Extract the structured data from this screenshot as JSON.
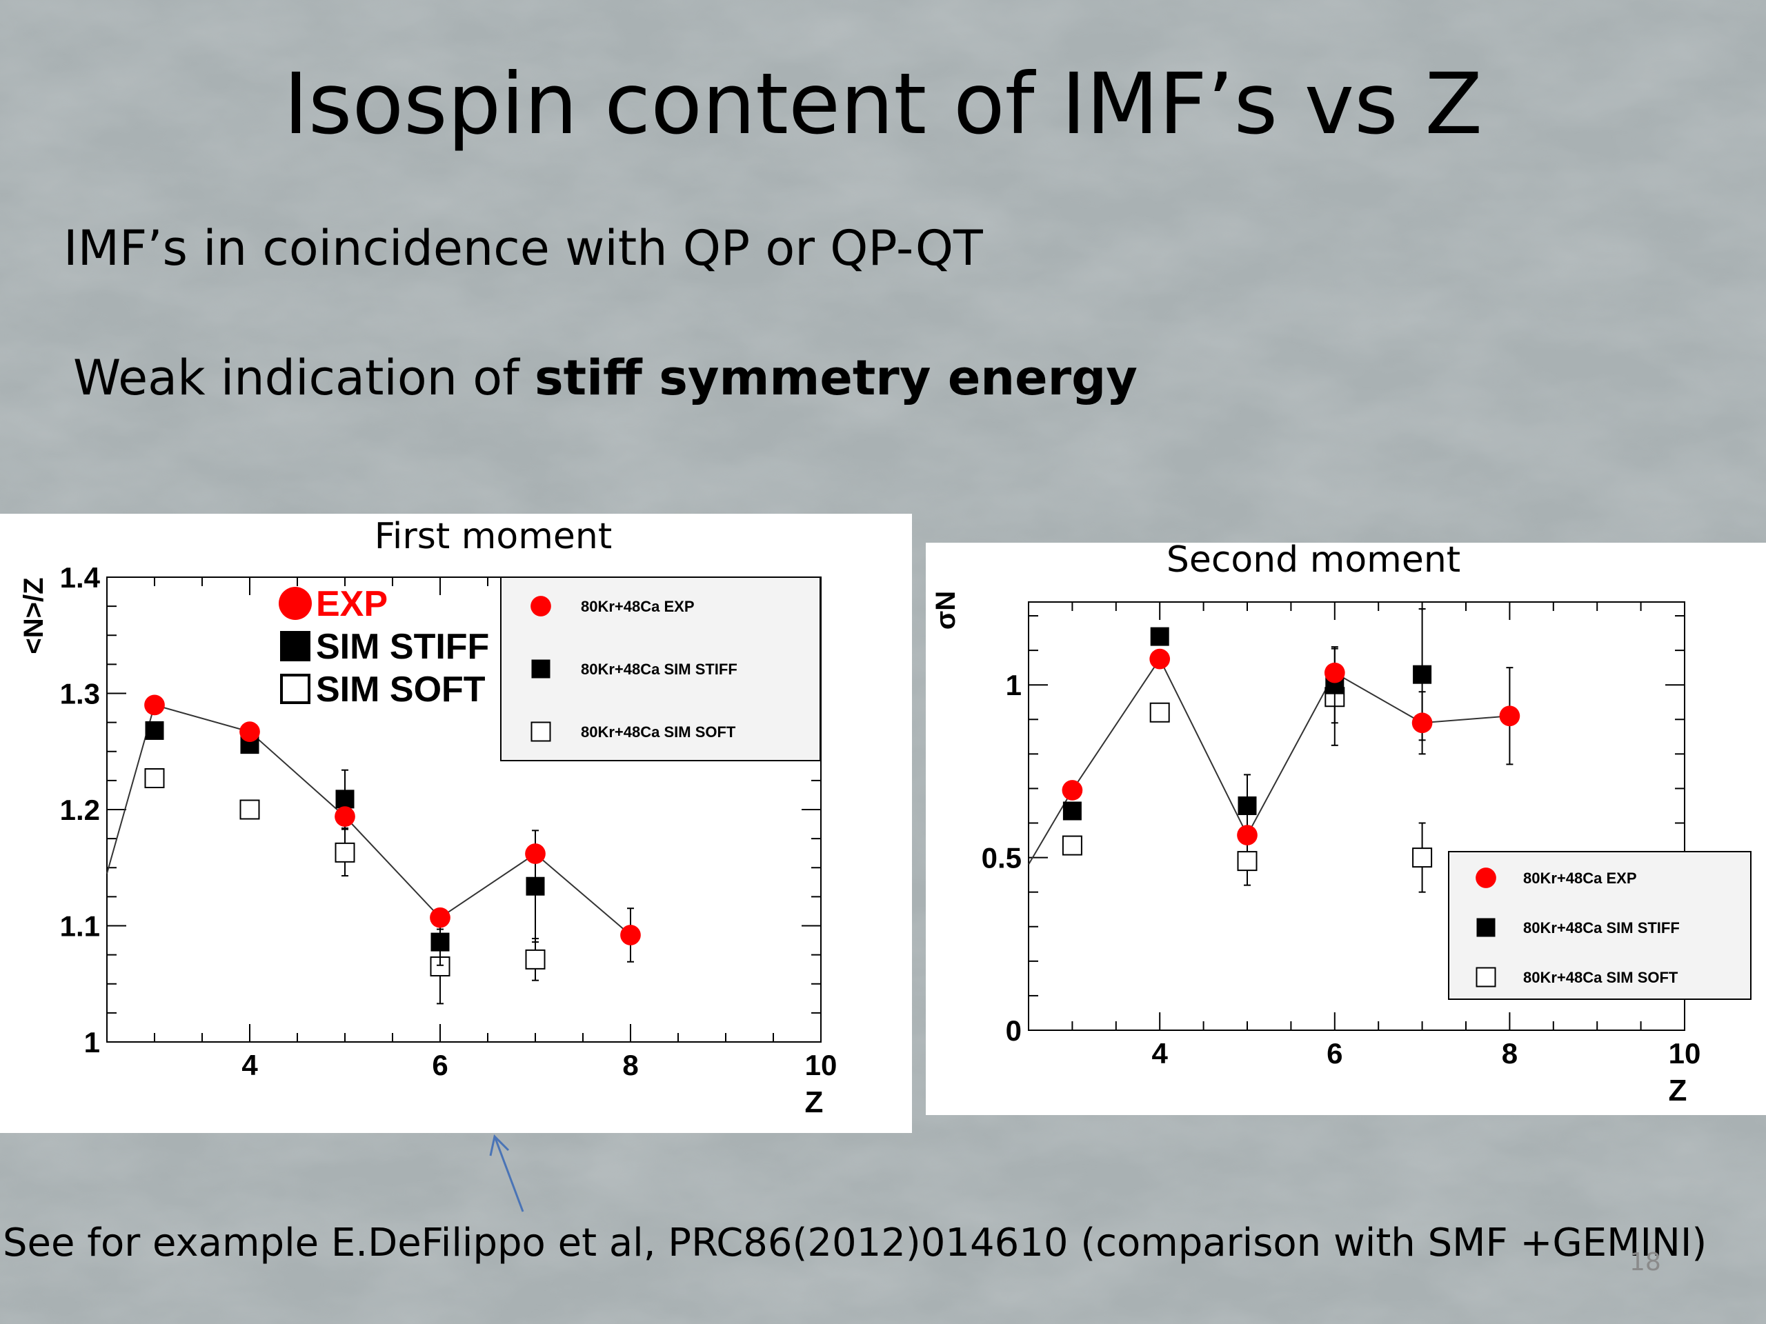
{
  "slide": {
    "title": "Isospin content of IMF’s vs Z",
    "bullet1": "IMF’s in coincidence with QP or QP-QT",
    "bullet2_plain": "Weak indication of ",
    "bullet2_bold": "stiff symmetry energy",
    "footnote": "See for example  E.DeFilippo et al, PRC86(2012)014610 (comparison with SMF +GEMINI)",
    "page_number": "18"
  },
  "colors": {
    "exp": "#ff0000",
    "stiff": "#000000",
    "soft": "#ffffff",
    "background": "#a9b1b3"
  },
  "chart_data": [
    {
      "type": "scatter",
      "title": "First moment",
      "ylabel": "<N>/Z",
      "xlabel": "Z",
      "xlim": [
        2.5,
        10
      ],
      "ylim": [
        1,
        1.4
      ],
      "xticks": [
        4,
        6,
        8,
        10
      ],
      "yticks": [
        1,
        1.1,
        1.2,
        1.3,
        1.4
      ],
      "legend_position": "top-right",
      "inline_legend": [
        "EXP",
        "SIM STIFF",
        "SIM SOFT"
      ],
      "series": [
        {
          "name": "80Kr+48Ca EXP",
          "marker": "circle",
          "color": "#ff0000",
          "line": true,
          "line_start": [
            2.5,
            1.145
          ],
          "points": [
            {
              "x": 3,
              "y": 1.29
            },
            {
              "x": 4,
              "y": 1.267
            },
            {
              "x": 5,
              "y": 1.194
            },
            {
              "x": 6,
              "y": 1.107
            },
            {
              "x": 7,
              "y": 1.162
            },
            {
              "x": 8,
              "y": 1.092,
              "err": 0.023
            }
          ]
        },
        {
          "name": "80Kr+48Ca SIM STIFF",
          "marker": "square",
          "color": "#000000",
          "points": [
            {
              "x": 3,
              "y": 1.268
            },
            {
              "x": 4,
              "y": 1.256
            },
            {
              "x": 5,
              "y": 1.209,
              "err": 0.025
            },
            {
              "x": 6,
              "y": 1.086,
              "err": 0.02
            },
            {
              "x": 7,
              "y": 1.134,
              "err": 0.048
            }
          ]
        },
        {
          "name": "80Kr+48Ca SIM SOFT",
          "marker": "open-square",
          "color": "#ffffff",
          "points": [
            {
              "x": 3,
              "y": 1.227
            },
            {
              "x": 4,
              "y": 1.2
            },
            {
              "x": 5,
              "y": 1.163,
              "err": 0.02
            },
            {
              "x": 6,
              "y": 1.065,
              "err": 0.032
            },
            {
              "x": 7,
              "y": 1.071,
              "err": 0.018
            }
          ]
        }
      ]
    },
    {
      "type": "scatter",
      "title": "Second moment",
      "ylabel": "σN",
      "xlabel": "Z",
      "xlim": [
        2.5,
        10
      ],
      "ylim": [
        0,
        1.24
      ],
      "xticks": [
        4,
        6,
        8,
        10
      ],
      "yticks": [
        0,
        0.5,
        1
      ],
      "ytick_labels": [
        "0",
        "0.5",
        "1"
      ],
      "legend_position": "bottom-right",
      "series": [
        {
          "name": "80Kr+48Ca EXP",
          "marker": "circle",
          "color": "#ff0000",
          "line": true,
          "line_start": [
            2.5,
            0.48
          ],
          "points": [
            {
              "x": 3,
              "y": 0.695
            },
            {
              "x": 4,
              "y": 1.075
            },
            {
              "x": 5,
              "y": 0.565
            },
            {
              "x": 6,
              "y": 1.035
            },
            {
              "x": 7,
              "y": 0.89,
              "err": 0.09
            },
            {
              "x": 8,
              "y": 0.91,
              "err": 0.14
            }
          ]
        },
        {
          "name": "80Kr+48Ca SIM STIFF",
          "marker": "square",
          "color": "#000000",
          "points": [
            {
              "x": 3,
              "y": 0.635
            },
            {
              "x": 4,
              "y": 1.14
            },
            {
              "x": 5,
              "y": 0.65,
              "err": 0.09
            },
            {
              "x": 6,
              "y": 1.0,
              "err": 0.11
            },
            {
              "x": 7,
              "y": 1.03,
              "err": 0.19
            }
          ]
        },
        {
          "name": "80Kr+48Ca SIM SOFT",
          "marker": "open-square",
          "color": "#ffffff",
          "points": [
            {
              "x": 3,
              "y": 0.535
            },
            {
              "x": 4,
              "y": 0.92
            },
            {
              "x": 5,
              "y": 0.49,
              "err": 0.07
            },
            {
              "x": 6,
              "y": 0.965,
              "err": 0.14
            },
            {
              "x": 7,
              "y": 0.5,
              "err": 0.1
            }
          ]
        }
      ]
    }
  ]
}
